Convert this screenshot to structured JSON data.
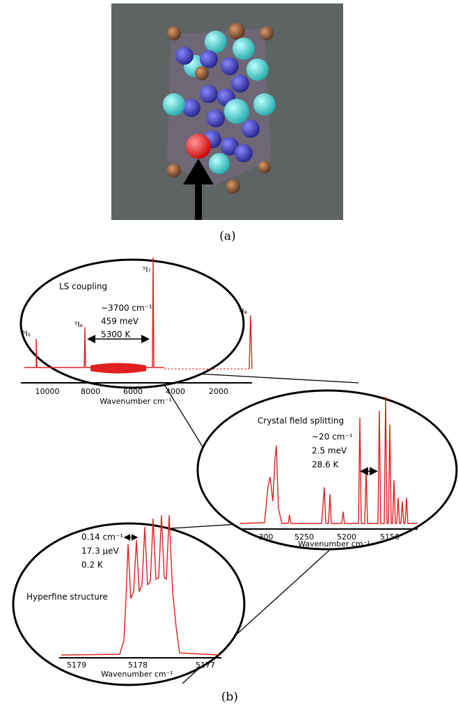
{
  "panel_a": {
    "caption": "(a)"
  },
  "panel_b": {
    "caption": "(b)",
    "ls_coupling": {
      "title": "LS coupling",
      "levels": [
        "⁵I₅",
        "⁵I₆",
        "⁵I₇",
        "⁵I₈"
      ],
      "annotation": [
        "~3700 cm⁻¹",
        "459 meV",
        "5300 K"
      ],
      "ticks": [
        "10000",
        "8000",
        "6000",
        "4000",
        "2000"
      ],
      "xlabel": "Wavenumber cm⁻¹"
    },
    "crystal_field": {
      "title": "Crystal field splitting",
      "annotation": [
        "~20 cm⁻¹",
        "2.5 meV",
        "28.6 K"
      ],
      "ticks": [
        "300",
        "5250",
        "5200",
        "5150"
      ],
      "xlabel": "Wavenumber cm⁻¹"
    },
    "hyperfine": {
      "title": "Hyperfine structure",
      "annotation": [
        "0.14 cm⁻¹",
        "17.3 µeV",
        "0.2 K"
      ],
      "ticks": [
        "5179",
        "5178",
        "5177"
      ],
      "xlabel": "Wavenumber cm⁻¹"
    }
  }
}
